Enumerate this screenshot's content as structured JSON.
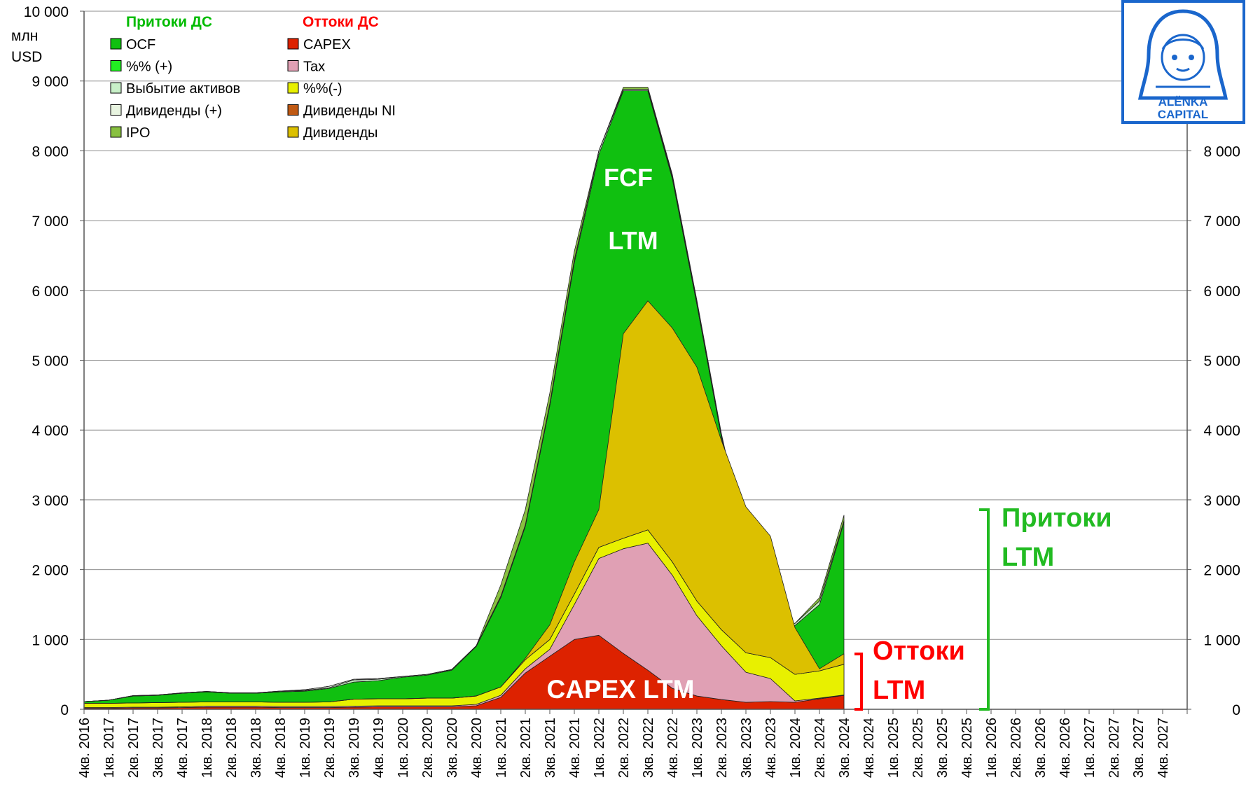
{
  "chart_data": {
    "type": "area",
    "stacked": true,
    "unit_label": [
      "млн",
      "USD"
    ],
    "ylim": [
      0,
      10000
    ],
    "y_ticks_left": [
      "0",
      "1 000",
      "2 000",
      "3 000",
      "4 000",
      "5 000",
      "6 000",
      "7 000",
      "8 000",
      "9 000",
      "10 000"
    ],
    "y_ticks_right": [
      "0",
      "1 000",
      "2 000",
      "3 000",
      "4 000",
      "5 000",
      "6 000",
      "7 000",
      "8 000"
    ],
    "categories": [
      "4кв. 2016",
      "1кв. 2017",
      "2кв. 2017",
      "3кв. 2017",
      "4кв. 2017",
      "1кв. 2018",
      "2кв. 2018",
      "3кв. 2018",
      "4кв. 2018",
      "1кв. 2019",
      "2кв. 2019",
      "3кв. 2019",
      "4кв. 2019",
      "1кв. 2020",
      "2кв. 2020",
      "3кв. 2020",
      "4кв. 2020",
      "1кв. 2021",
      "2кв. 2021",
      "3кв. 2021",
      "4кв. 2021",
      "1кв. 2022",
      "2кв. 2022",
      "3кв. 2022",
      "4кв. 2022",
      "1кв. 2023",
      "2кв. 2023",
      "3кв. 2023",
      "4кв. 2023",
      "1кв. 2024",
      "2кв. 2024",
      "3кв. 2024",
      "4кв. 2024",
      "1кв. 2025",
      "2кв. 2025",
      "3кв. 2025",
      "4кв. 2025",
      "1кв. 2026",
      "2кв. 2026",
      "3кв. 2026",
      "4кв. 2026",
      "1кв. 2027",
      "2кв. 2027",
      "3кв. 2027",
      "4кв. 2027"
    ],
    "outflows": {
      "title": "Оттоки ДС",
      "title_color": "#ff0000",
      "series": [
        {
          "name": "CAPEX",
          "color": "#dd2200",
          "values": [
            15,
            15,
            20,
            20,
            25,
            30,
            30,
            30,
            25,
            25,
            25,
            30,
            35,
            35,
            35,
            35,
            50,
            170,
            520,
            760,
            1000,
            1060,
            800,
            560,
            300,
            190,
            140,
            100,
            110,
            100,
            150,
            200,
            null,
            null,
            null,
            null,
            null,
            null,
            null,
            null,
            null,
            null,
            null,
            null,
            null
          ]
        },
        {
          "name": "Tax",
          "color": "#e0a0b4",
          "values": [
            10,
            10,
            10,
            10,
            10,
            15,
            15,
            15,
            15,
            15,
            15,
            15,
            15,
            15,
            15,
            15,
            20,
            30,
            60,
            100,
            500,
            1100,
            1500,
            1820,
            1620,
            1150,
            770,
            430,
            330,
            20,
            10,
            5,
            null,
            null,
            null,
            null,
            null,
            null,
            null,
            null,
            null,
            null,
            null,
            null,
            null
          ]
        },
        {
          "name": "%%(-)",
          "color": "#e8f000",
          "values": [
            60,
            60,
            60,
            65,
            65,
            60,
            60,
            60,
            60,
            60,
            65,
            100,
            100,
            100,
            110,
            110,
            120,
            120,
            130,
            140,
            150,
            160,
            150,
            190,
            190,
            210,
            230,
            280,
            300,
            380,
            390,
            440,
            null,
            null,
            null,
            null,
            null,
            null,
            null,
            null,
            null,
            null,
            null,
            null,
            null
          ]
        },
        {
          "name": "Дивиденды NI",
          "color": "#c05a14",
          "values": [
            0,
            0,
            0,
            0,
            0,
            0,
            0,
            0,
            0,
            0,
            0,
            0,
            0,
            0,
            0,
            0,
            0,
            0,
            0,
            0,
            0,
            0,
            0,
            0,
            0,
            0,
            0,
            0,
            0,
            0,
            0,
            0,
            null,
            null,
            null,
            null,
            null,
            null,
            null,
            null,
            null,
            null,
            null,
            null,
            null
          ]
        },
        {
          "name": "Дивиденды",
          "color": "#dcc000",
          "values": [
            0,
            0,
            0,
            0,
            0,
            0,
            0,
            0,
            0,
            0,
            0,
            0,
            0,
            0,
            0,
            0,
            0,
            0,
            20,
            210,
            460,
            540,
            2930,
            3280,
            3350,
            3350,
            2710,
            2090,
            1740,
            670,
            30,
            150,
            null,
            null,
            null,
            null,
            null,
            null,
            null,
            null,
            null,
            null,
            null,
            null,
            null
          ]
        }
      ]
    },
    "inflows": {
      "title": "Притоки ДС",
      "title_color": "#00bb00",
      "series": [
        {
          "name": "OCF",
          "color": "#10c010",
          "values": [
            110,
            130,
            190,
            200,
            230,
            250,
            230,
            230,
            250,
            260,
            300,
            390,
            410,
            460,
            490,
            560,
            900,
            1600,
            2620,
            4350,
            6400,
            7950,
            8860,
            8860,
            7600,
            5800,
            3900,
            2300,
            1200,
            1200,
            1500,
            2680,
            null,
            null,
            null,
            null,
            null,
            null,
            null,
            null,
            null,
            null,
            null,
            null,
            null
          ]
        },
        {
          "name": "%% (+)",
          "color": "#22ee22",
          "values": [
            0,
            0,
            0,
            0,
            0,
            0,
            0,
            0,
            0,
            0,
            0,
            0,
            0,
            0,
            0,
            0,
            0,
            0,
            0,
            0,
            0,
            0,
            0,
            0,
            0,
            0,
            0,
            0,
            0,
            0,
            0,
            0,
            null,
            null,
            null,
            null,
            null,
            null,
            null,
            null,
            null,
            null,
            null,
            null,
            null
          ]
        },
        {
          "name": "Выбытие активов",
          "color": "#c8f0c8",
          "values": [
            0,
            0,
            5,
            5,
            5,
            5,
            5,
            5,
            10,
            10,
            10,
            30,
            20,
            10,
            10,
            10,
            10,
            20,
            20,
            30,
            40,
            50,
            20,
            20,
            30,
            30,
            20,
            60,
            80,
            30,
            50,
            20,
            null,
            null,
            null,
            null,
            null,
            null,
            null,
            null,
            null,
            null,
            null,
            null,
            null
          ]
        },
        {
          "name": "Дивиденды (+)",
          "color": "#e8f4e0",
          "values": [
            0,
            0,
            0,
            0,
            0,
            0,
            0,
            0,
            0,
            10,
            20,
            10,
            10,
            0,
            0,
            0,
            0,
            0,
            0,
            0,
            0,
            0,
            0,
            0,
            0,
            0,
            0,
            0,
            0,
            0,
            0,
            0,
            null,
            null,
            null,
            null,
            null,
            null,
            null,
            null,
            null,
            null,
            null,
            null,
            null
          ]
        },
        {
          "name": "IPO",
          "color": "#88c040",
          "values": [
            0,
            0,
            0,
            0,
            0,
            0,
            0,
            0,
            0,
            0,
            0,
            0,
            0,
            0,
            0,
            0,
            0,
            160,
            220,
            150,
            120,
            0,
            30,
            30,
            30,
            30,
            30,
            20,
            0,
            0,
            50,
            80,
            null,
            null,
            null,
            null,
            null,
            null,
            null,
            null,
            null,
            null,
            null,
            null,
            null
          ]
        }
      ]
    },
    "annotations": {
      "fcf": [
        "FCF",
        "LTM"
      ],
      "capex": "CAPEX LTM",
      "inflows": [
        "Притоки",
        "LTM"
      ],
      "outflows": [
        "Оттоки",
        "LTM"
      ]
    },
    "logo": {
      "line1": "ALЁNKA",
      "line2": "CAPITAL"
    }
  }
}
